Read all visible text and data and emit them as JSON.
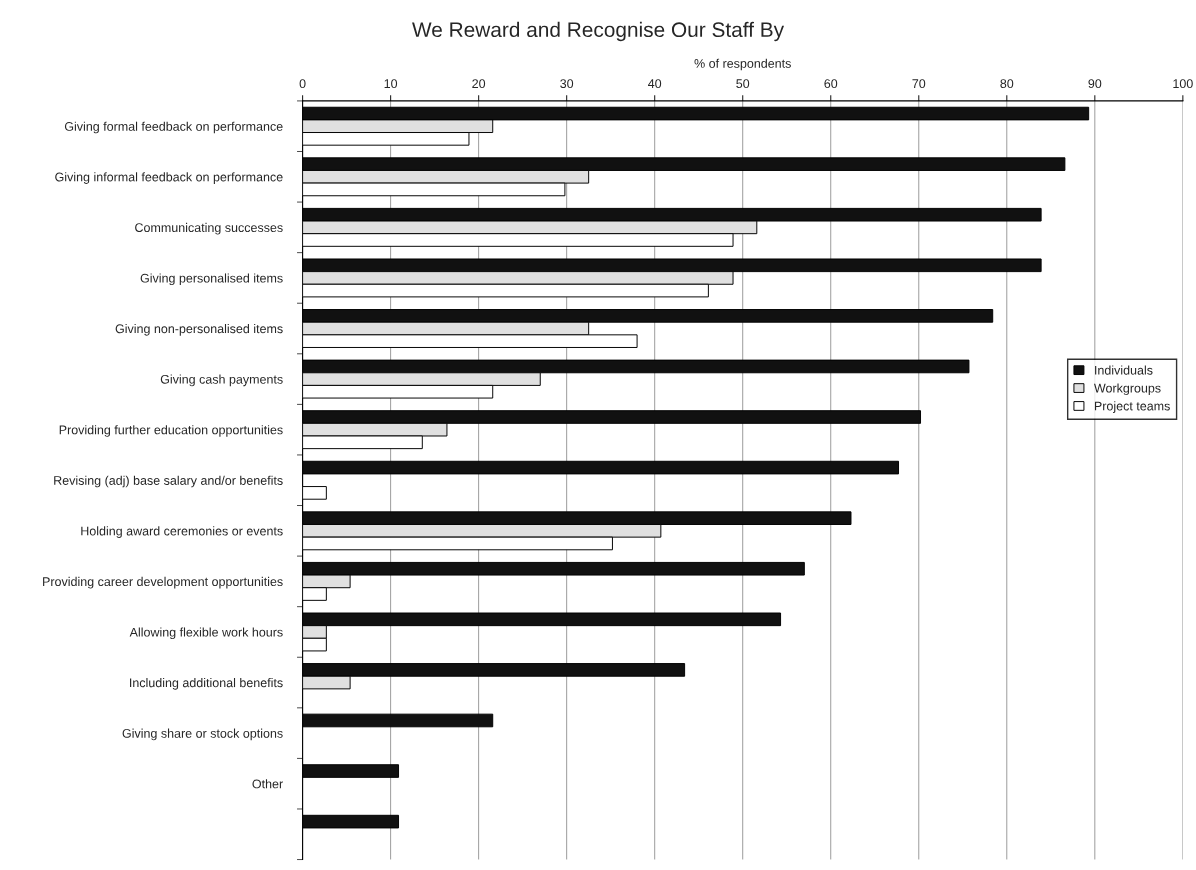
{
  "chart_data": {
    "type": "bar",
    "orientation": "horizontal",
    "title": "We Reward and Recognise Our Staff By",
    "xlabel": "% of respondents",
    "categories": [
      "Giving formal feedback on performance",
      "Giving informal feedback on performance",
      "Communicating successes",
      "Giving personalised items",
      "Giving non-personalised items",
      "Giving cash payments",
      "Providing further education opportunities",
      "Revising (adj) base salary and/or benefits",
      "Holding award ceremonies or events",
      "Providing career development opportunities",
      "Allowing flexible work hours",
      "Including additional benefits",
      "Giving share or stock options",
      "Other",
      null
    ],
    "series": [
      {
        "name": "Individuals",
        "color": "#111111",
        "values": [
          89.3,
          86.6,
          83.9,
          83.9,
          78.4,
          75.7,
          70.2,
          67.7,
          62.3,
          57.0,
          54.3,
          43.4,
          21.6,
          10.9,
          10.9
        ]
      },
      {
        "name": "Workgroups",
        "color": "#e0e0e0",
        "values": [
          21.6,
          32.5,
          51.6,
          48.9,
          32.5,
          27.0,
          16.4,
          null,
          40.7,
          5.4,
          2.7,
          5.4,
          null,
          null,
          null
        ]
      },
      {
        "name": "Project teams",
        "color": "#ffffff",
        "values": [
          18.9,
          29.8,
          48.9,
          46.1,
          38.0,
          21.6,
          13.6,
          2.7,
          35.2,
          2.7,
          2.7,
          null,
          null,
          null,
          null
        ]
      }
    ],
    "xlim": [
      0,
      100
    ],
    "xticks": [
      0,
      10,
      20,
      30,
      40,
      50,
      60,
      70,
      80,
      90,
      100
    ],
    "grid": "x",
    "legend": "right"
  }
}
